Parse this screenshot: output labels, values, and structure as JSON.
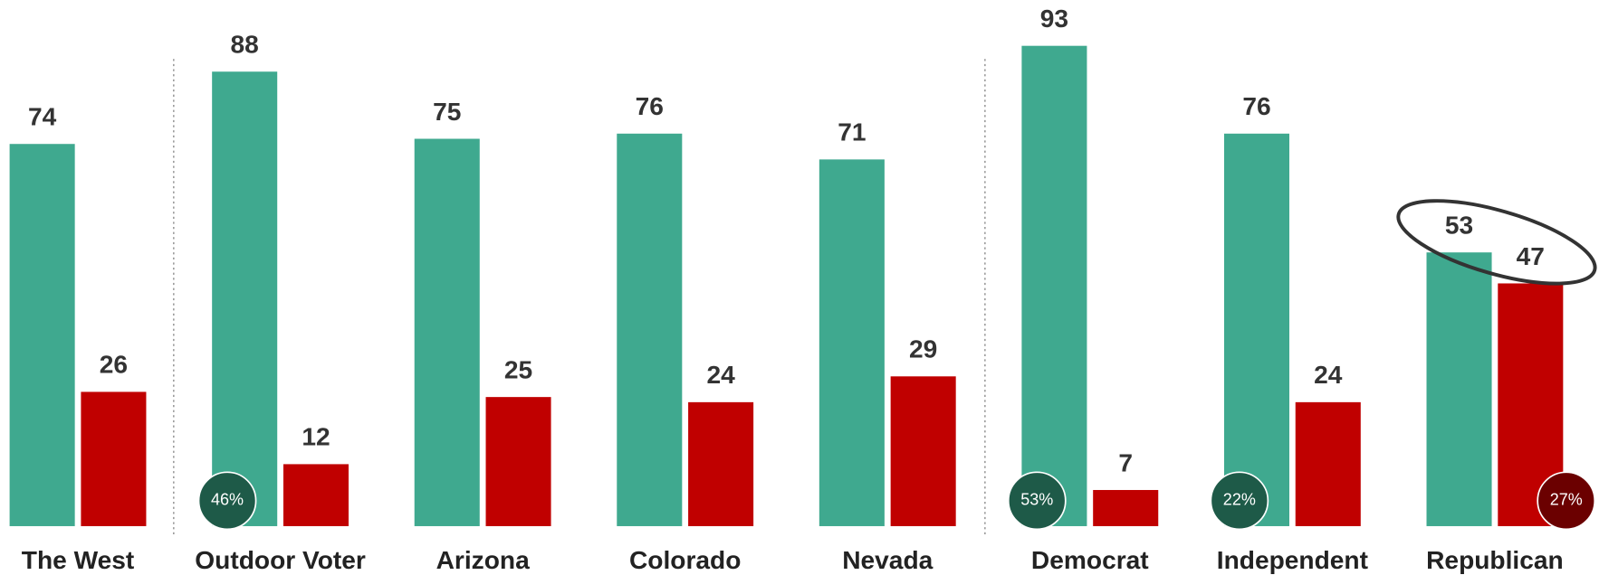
{
  "chart_data": {
    "type": "bar",
    "categories": [
      "The West",
      "Outdoor Voter",
      "Arizona",
      "Colorado",
      "Nevada",
      "Democrat",
      "Independent",
      "Republican"
    ],
    "series": [
      {
        "color": "#3fa98f",
        "values": [
          74,
          88,
          75,
          76,
          71,
          93,
          76,
          53
        ]
      },
      {
        "color": "#c00000",
        "values": [
          26,
          12,
          25,
          24,
          29,
          7,
          24,
          47
        ]
      }
    ],
    "ylim": [
      0,
      100
    ],
    "badges": [
      {
        "category": 1,
        "series": 0,
        "label": "46%",
        "color": "#1e5a48"
      },
      {
        "category": 5,
        "series": 0,
        "label": "53%",
        "color": "#1e5a48"
      },
      {
        "category": 6,
        "series": 0,
        "label": "22%",
        "color": "#1e5a48"
      },
      {
        "category": 7,
        "series": 1,
        "label": "27%",
        "color": "#6b0000"
      }
    ]
  }
}
